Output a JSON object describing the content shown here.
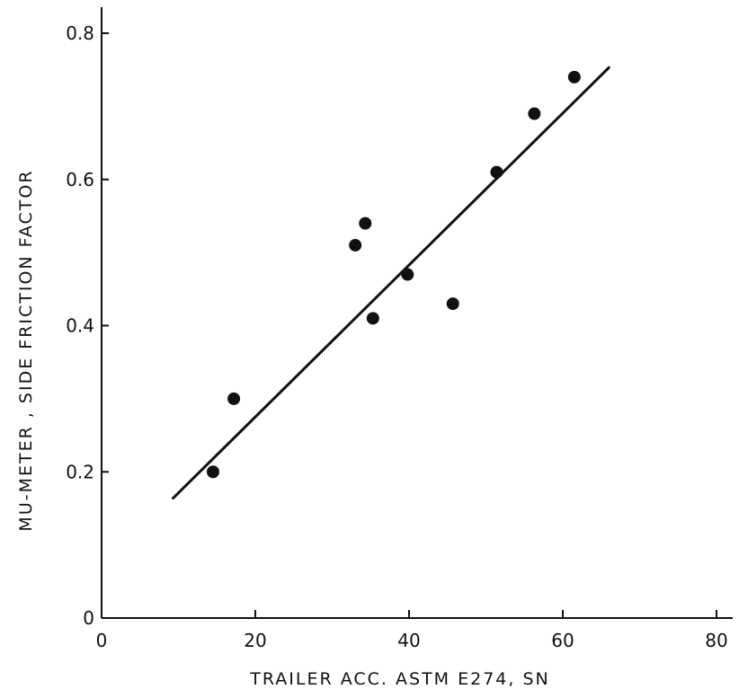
{
  "chart_data": {
    "type": "scatter",
    "title": "",
    "xlabel": "TRAILER ACC. ASTM E274, SN",
    "ylabel": "MU-METER , SIDE FRICTION FACTOR",
    "xlim": [
      0,
      80
    ],
    "ylim": [
      0,
      0.8
    ],
    "x_ticks": [
      0,
      20,
      40,
      60,
      80
    ],
    "x_tick_labels": [
      "0",
      "20",
      "40",
      "60",
      "80"
    ],
    "y_ticks": [
      0,
      0.2,
      0.4,
      0.6,
      0.8
    ],
    "y_tick_labels": [
      "0",
      "0.2",
      "0.4",
      "0.6",
      "0.8"
    ],
    "grid": false,
    "points": [
      {
        "x": 14.5,
        "y": 0.2
      },
      {
        "x": 17.2,
        "y": 0.3
      },
      {
        "x": 33.0,
        "y": 0.51
      },
      {
        "x": 34.3,
        "y": 0.54
      },
      {
        "x": 35.3,
        "y": 0.41
      },
      {
        "x": 39.8,
        "y": 0.47
      },
      {
        "x": 45.7,
        "y": 0.43
      },
      {
        "x": 51.4,
        "y": 0.61
      },
      {
        "x": 56.3,
        "y": 0.69
      },
      {
        "x": 61.5,
        "y": 0.74
      }
    ],
    "fit_line": {
      "x": [
        9.3,
        66.0
      ],
      "y": [
        0.164,
        0.753
      ]
    },
    "colors": {
      "ink": "#111111",
      "background": "#ffffff"
    }
  }
}
